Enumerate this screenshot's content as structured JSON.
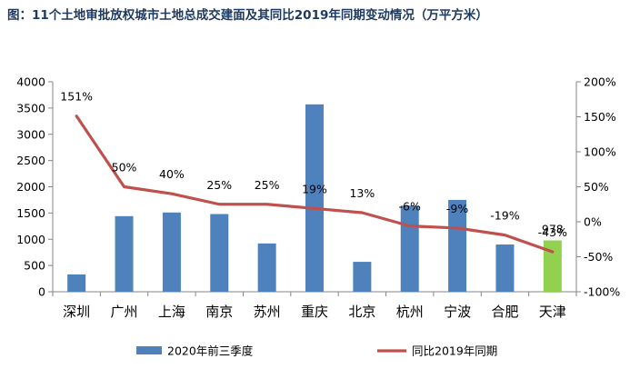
{
  "chart_data": {
    "type": "bar",
    "title": "图：11个土地审批放权城市土地总成交建面及其同比2019年同期变动情况（万平方米）",
    "categories": [
      "深圳",
      "广州",
      "上海",
      "南京",
      "苏州",
      "重庆",
      "北京",
      "杭州",
      "宁波",
      "合肥",
      "天津"
    ],
    "series": [
      {
        "name": "2020年前三季度",
        "type": "bar",
        "axis": "left",
        "values": [
          330,
          1440,
          1510,
          1480,
          920,
          3570,
          570,
          1640,
          1750,
          900,
          978
        ],
        "point_labels": [
          "",
          "",
          "",
          "",
          "",
          "",
          "",
          "",
          "",
          "",
          "978"
        ],
        "color": "#4f81bd",
        "highlight_color": "#92d050",
        "highlight_index": 10
      },
      {
        "name": "同比2019年同期",
        "type": "line",
        "axis": "right",
        "values": [
          151,
          50,
          40,
          25,
          25,
          19,
          13,
          -6,
          -9,
          -19,
          -43
        ],
        "point_labels": [
          "151%",
          "50%",
          "40%",
          "25%",
          "25%",
          "19%",
          "13%",
          "-6%",
          "-9%",
          "-19%",
          "-43%"
        ],
        "color": "#c0504d"
      }
    ],
    "y_left": {
      "min": 0,
      "max": 4000,
      "step": 500,
      "ticks": [
        "0",
        "500",
        "1000",
        "1500",
        "2000",
        "2500",
        "3000",
        "3500",
        "4000"
      ]
    },
    "y_right": {
      "min": -100,
      "max": 200,
      "step": 50,
      "ticks": [
        "-100%",
        "-50%",
        "0%",
        "50%",
        "100%",
        "150%",
        "200%"
      ]
    },
    "grid": false,
    "legend_position": "bottom"
  }
}
